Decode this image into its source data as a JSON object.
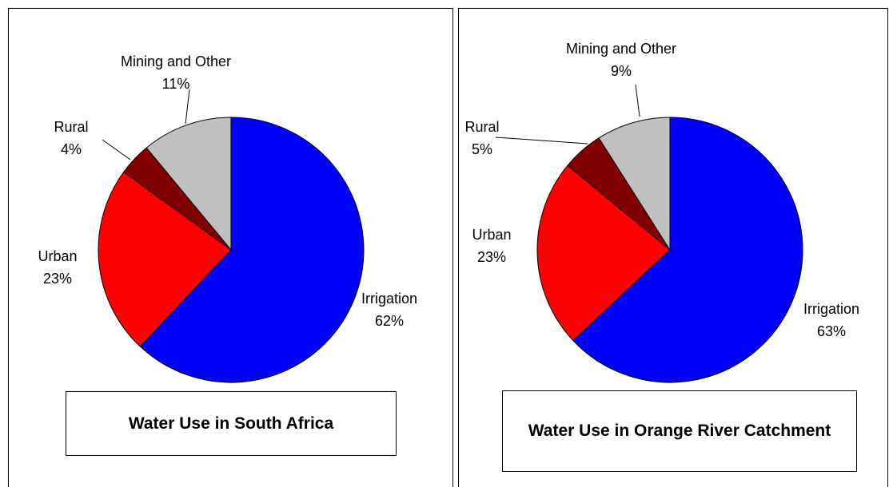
{
  "chart_data": [
    {
      "type": "pie",
      "title": "Water Use in South Africa",
      "categories": [
        "Irrigation",
        "Urban",
        "Rural",
        "Mining and Other"
      ],
      "values": [
        62,
        23,
        4,
        11
      ],
      "value_labels": [
        "62%",
        "23%",
        "4%",
        "11%"
      ],
      "colors": [
        "#0000ff",
        "#ff0000",
        "#800000",
        "#c0c0c0"
      ]
    },
    {
      "type": "pie",
      "title": "Water Use in Orange River Catchment",
      "categories": [
        "Irrigation",
        "Urban",
        "Rural",
        "Mining and Other"
      ],
      "values": [
        63,
        23,
        5,
        9
      ],
      "value_labels": [
        "63%",
        "23%",
        "5%",
        "9%"
      ],
      "colors": [
        "#0000ff",
        "#ff0000",
        "#800000",
        "#c0c0c0"
      ]
    }
  ]
}
